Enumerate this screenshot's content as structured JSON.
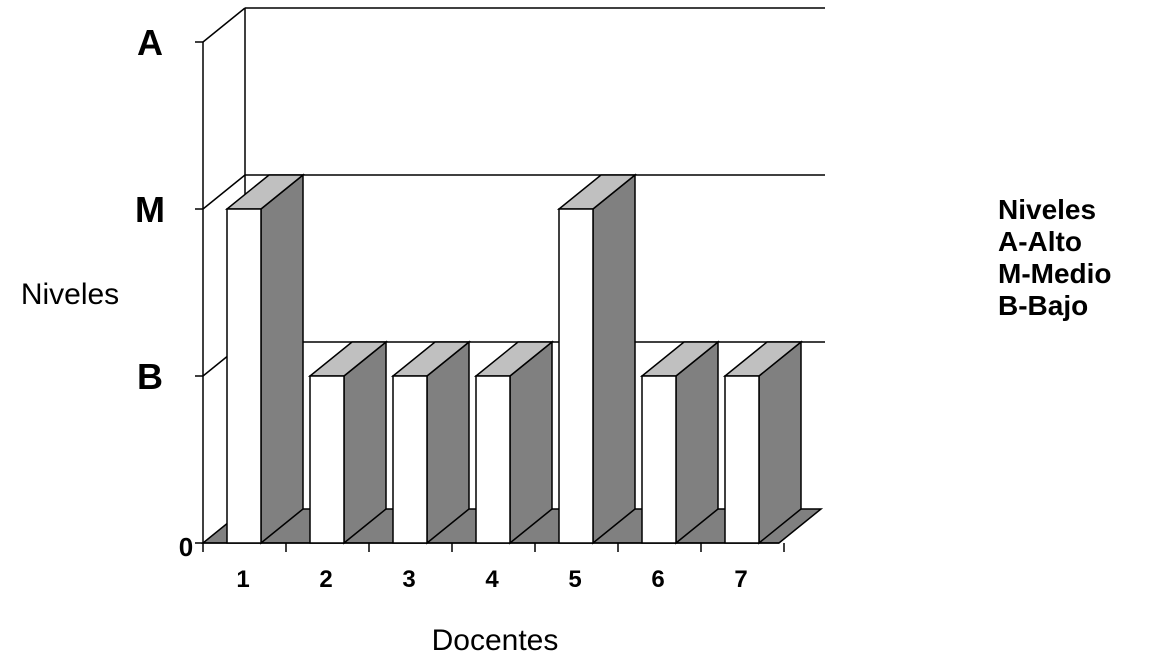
{
  "chart_data": {
    "type": "bar",
    "title": "",
    "xlabel": "Docentes",
    "ylabel": "Niveles",
    "categories": [
      "1",
      "2",
      "3",
      "4",
      "5",
      "6",
      "7"
    ],
    "values": [
      2,
      1,
      1,
      1,
      2,
      1,
      1
    ],
    "y_levels": [
      {
        "value": 0,
        "label": "0"
      },
      {
        "value": 1,
        "label": "B"
      },
      {
        "value": 2,
        "label": "M"
      },
      {
        "value": 3,
        "label": "A"
      }
    ],
    "ylim": [
      0,
      3
    ],
    "grid": true,
    "legend": {
      "title": "Niveles",
      "entries": [
        "A-Alto",
        "M-Medio",
        "B-Bajo"
      ],
      "placement": "right"
    },
    "colors": {
      "bar_front": "#ffffff",
      "bar_side": "#808080",
      "bar_top": "#c0c0c0",
      "floor": "#808080",
      "line": "#000000"
    }
  }
}
